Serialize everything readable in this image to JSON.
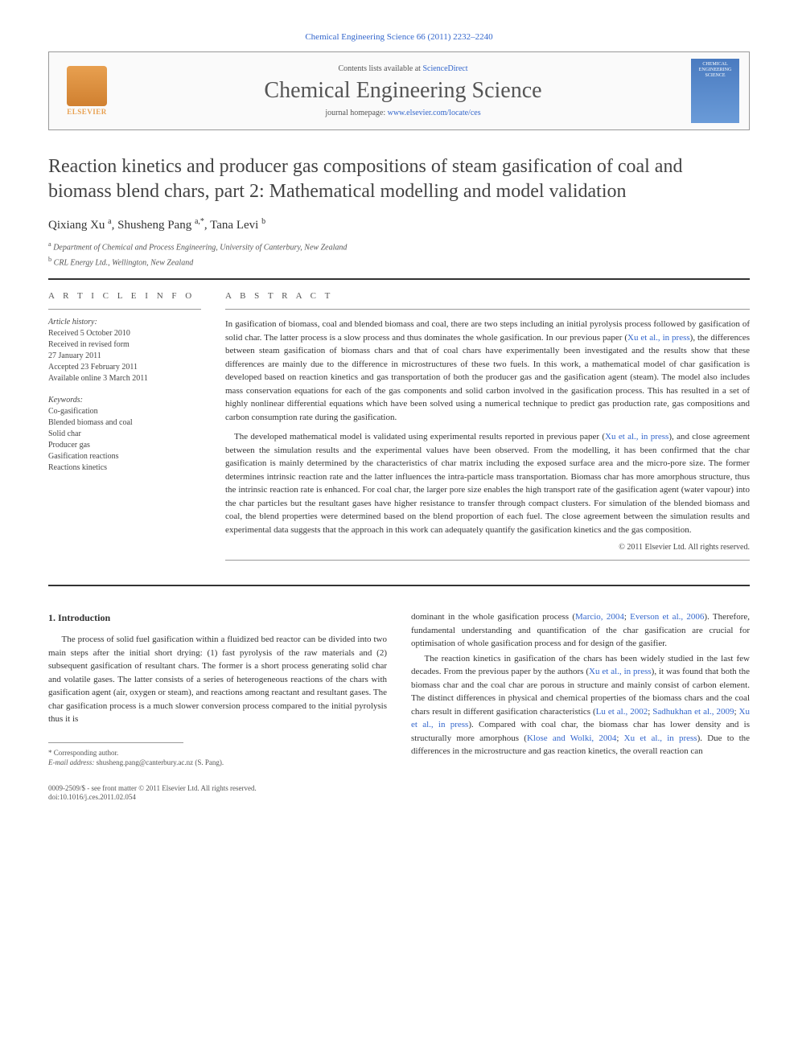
{
  "journal_ref": "Chemical Engineering Science 66 (2011) 2232–2240",
  "header": {
    "contents_prefix": "Contents lists available at ",
    "contents_link": "ScienceDirect",
    "journal_title": "Chemical Engineering Science",
    "homepage_prefix": "journal homepage: ",
    "homepage_url": "www.elsevier.com/locate/ces",
    "publisher_name": "ELSEVIER",
    "cover_text": "CHEMICAL ENGINEERING SCIENCE"
  },
  "article": {
    "title": "Reaction kinetics and producer gas compositions of steam gasification of coal and biomass blend chars, part 2: Mathematical modelling and model validation",
    "authors_html": "Qixiang Xu <sup>a</sup>, Shusheng Pang <sup>a,*</sup>, Tana Levi <sup>b</sup>",
    "affiliations": [
      {
        "sup": "a",
        "text": "Department of Chemical and Process Engineering, University of Canterbury, New Zealand"
      },
      {
        "sup": "b",
        "text": "CRL Energy Ltd., Wellington, New Zealand"
      }
    ]
  },
  "info": {
    "heading": "A R T I C L E  I N F O",
    "history_label": "Article history:",
    "history": [
      "Received 5 October 2010",
      "Received in revised form",
      "27 January 2011",
      "Accepted 23 February 2011",
      "Available online 3 March 2011"
    ],
    "keywords_label": "Keywords:",
    "keywords": [
      "Co-gasification",
      "Blended biomass and coal",
      "Solid char",
      "Producer gas",
      "Gasification reactions",
      "Reactions kinetics"
    ]
  },
  "abstract": {
    "heading": "A B S T R A C T",
    "para1_part1": "In gasification of biomass, coal and blended biomass and coal, there are two steps including an initial pyrolysis process followed by gasification of solid char. The latter process is a slow process and thus dominates the whole gasification. In our previous paper (",
    "para1_link1": "Xu et al., in press",
    "para1_part2": "), the differences between steam gasification of biomass chars and that of coal chars have experimentally been investigated and the results show that these differences are mainly due to the difference in microstructures of these two fuels. In this work, a mathematical model of char gasification is developed based on reaction kinetics and gas transportation of both the producer gas and the gasification agent (steam). The model also includes mass conservation equations for each of the gas components and solid carbon involved in the gasification process. This has resulted in a set of highly nonlinear differential equations which have been solved using a numerical technique to predict gas production rate, gas compositions and carbon consumption rate during the gasification.",
    "para2_part1": "The developed mathematical model is validated using experimental results reported in previous paper (",
    "para2_link1": "Xu et al., in press",
    "para2_part2": "), and close agreement between the simulation results and the experimental values have been observed. From the modelling, it has been confirmed that the char gasification is mainly determined by the characteristics of char matrix including the exposed surface area and the micro-pore size. The former determines intrinsic reaction rate and the latter influences the intra-particle mass transportation. Biomass char has more amorphous structure, thus the intrinsic reaction rate is enhanced. For coal char, the larger pore size enables the high transport rate of the gasification agent (water vapour) into the char particles but the resultant gases have higher resistance to transfer through compact clusters. For simulation of the blended biomass and coal, the blend properties were determined based on the blend proportion of each fuel. The close agreement between the simulation results and experimental data suggests that the approach in this work can adequately quantify the gasification kinetics and the gas composition.",
    "copyright": "© 2011 Elsevier Ltd. All rights reserved."
  },
  "section1": {
    "heading": "1. Introduction",
    "col1_para1_part1": "The process of solid fuel gasification within a fluidized bed reactor can be divided into two main steps after the initial short drying: (1) fast pyrolysis of the raw materials and (2) subsequent gasification of resultant chars. The former is a short process generating solid char and volatile gases. The latter consists of a series of heterogeneous reactions of the chars with gasification agent (air, oxygen or steam), and reactions among reactant and resultant gases. The char gasification process is a much slower conversion process compared to the initial pyrolysis thus it is",
    "col2_para1_part1": "dominant in the whole gasification process (",
    "col2_para1_link1": "Marcio, 2004",
    "col2_para1_sep1": "; ",
    "col2_para1_link2": "Everson et al., 2006",
    "col2_para1_part2": "). Therefore, fundamental understanding and quantification of the char gasification are crucial for optimisation of whole gasification process and for design of the gasifier.",
    "col2_para2_part1": "The reaction kinetics in gasification of the chars has been widely studied in the last few decades. From the previous paper by the authors (",
    "col2_para2_link1": "Xu et al., in press",
    "col2_para2_part2": "), it was found that both the biomass char and the coal char are porous in structure and mainly consist of carbon element. The distinct differences in physical and chemical properties of the biomass chars and the coal chars result in different gasification characteristics (",
    "col2_para2_link2": "Lu et al., 2002",
    "col2_para2_sep1": "; ",
    "col2_para2_link3": "Sadhukhan et al., 2009",
    "col2_para2_sep2": "; ",
    "col2_para2_link4": "Xu et al., in press",
    "col2_para2_part3": "). Compared with coal char, the biomass char has lower density and is structurally more amorphous (",
    "col2_para2_link5": "Klose and Wolki, 2004",
    "col2_para2_sep3": "; ",
    "col2_para2_link6": "Xu et al., in press",
    "col2_para2_part4": "). Due to the differences in the microstructure and gas reaction kinetics, the overall reaction can"
  },
  "footnote": {
    "corr": "* Corresponding author.",
    "email_label": "E-mail address:",
    "email": "shusheng.pang@canterbury.ac.nz (S. Pang)."
  },
  "bottom": {
    "issn": "0009-2509/$ - see front matter © 2011 Elsevier Ltd. All rights reserved.",
    "doi": "doi:10.1016/j.ces.2011.02.054"
  },
  "colors": {
    "link": "#3366cc",
    "text": "#333333",
    "muted": "#555555"
  }
}
